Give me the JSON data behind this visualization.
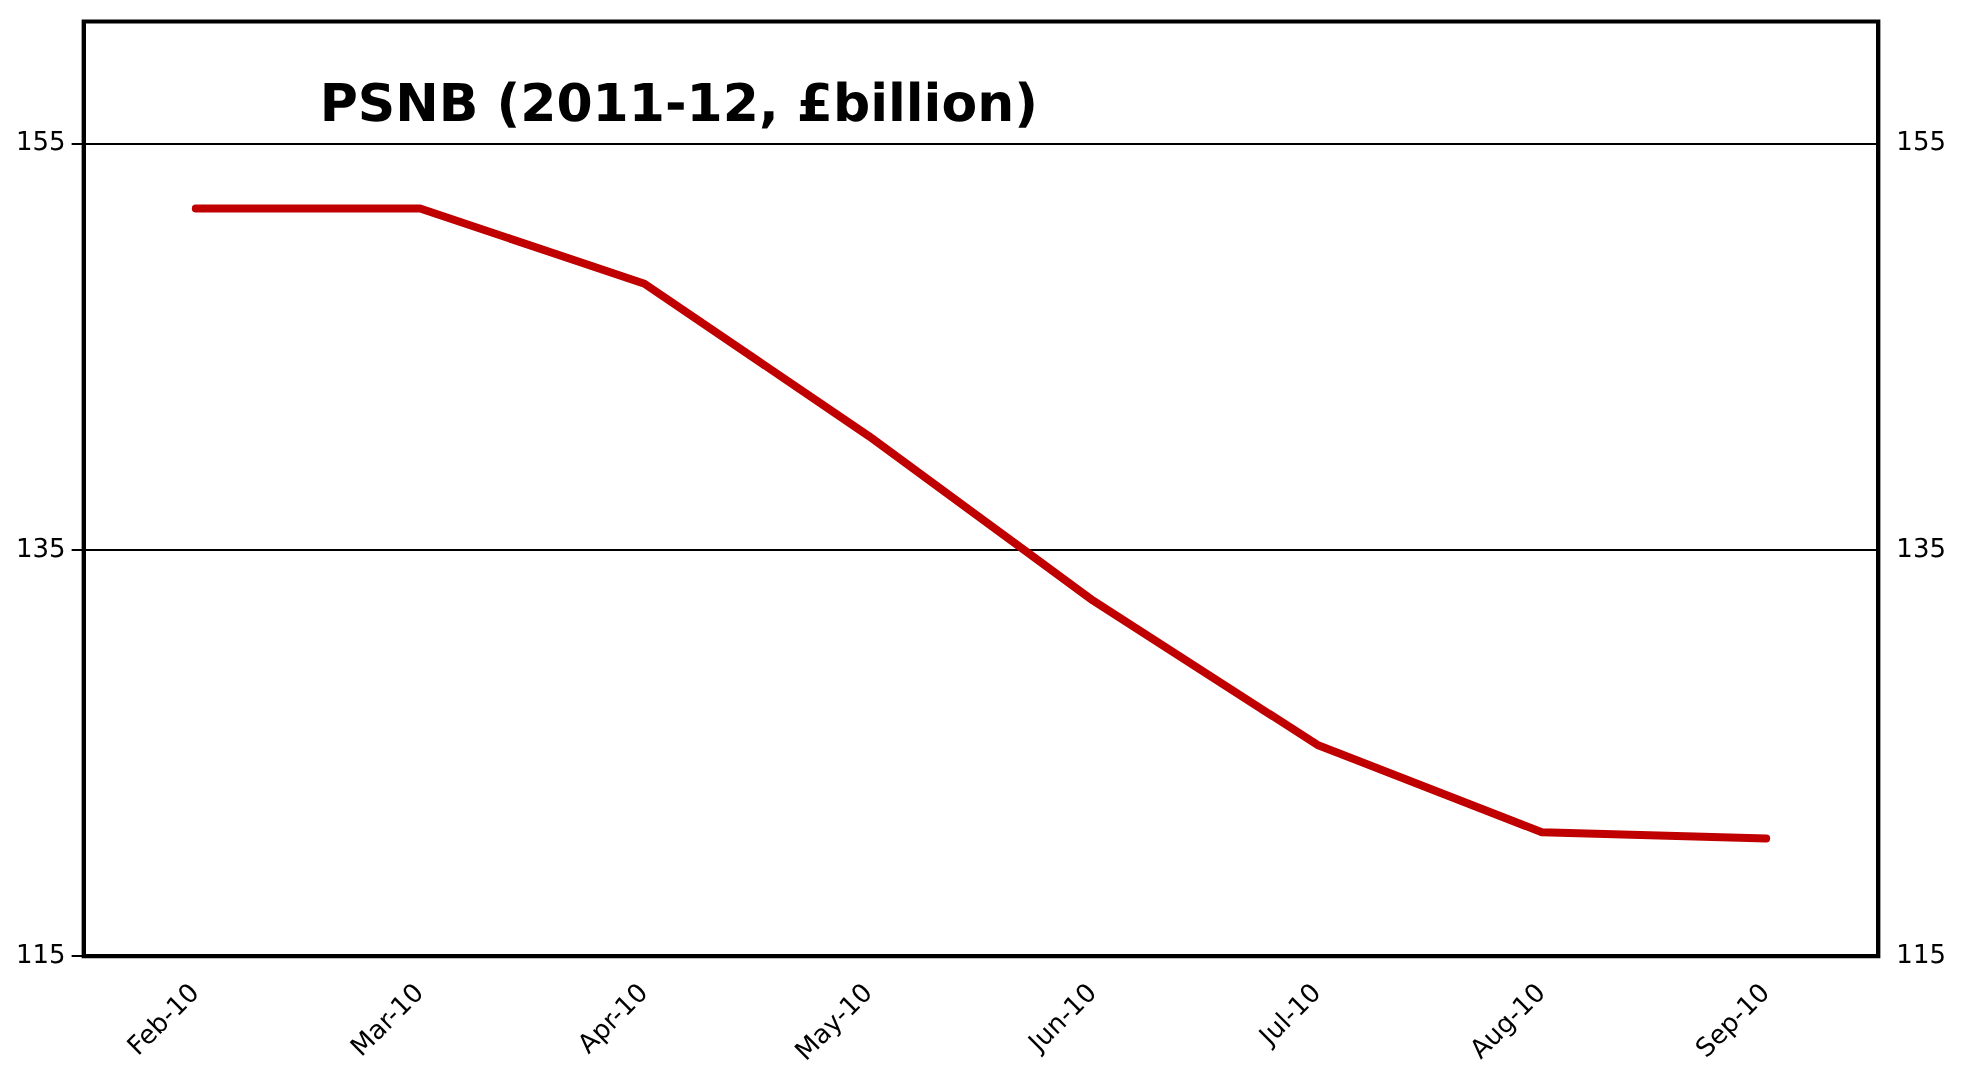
{
  "chart_data": {
    "type": "line",
    "title": "PSNB (2011-12, £billion)",
    "categories": [
      "Feb-10",
      "Mar-10",
      "Apr-10",
      "May-10",
      "Jun-10",
      "Jul-10",
      "Aug-10",
      "Sep-10"
    ],
    "series": [
      {
        "color": "#c00000",
        "values": [
          151.8,
          151.8,
          148.1,
          140.6,
          132.5,
          125.4,
          121.1,
          120.8
        ]
      }
    ],
    "ylim": [
      115,
      161
    ],
    "yticks": [
      115,
      135,
      155
    ],
    "y2lim": [
      115,
      161
    ],
    "y2ticks": [
      115,
      135,
      155
    ],
    "grid": "y",
    "legend": false,
    "marker": "none",
    "line_style": "solid"
  }
}
